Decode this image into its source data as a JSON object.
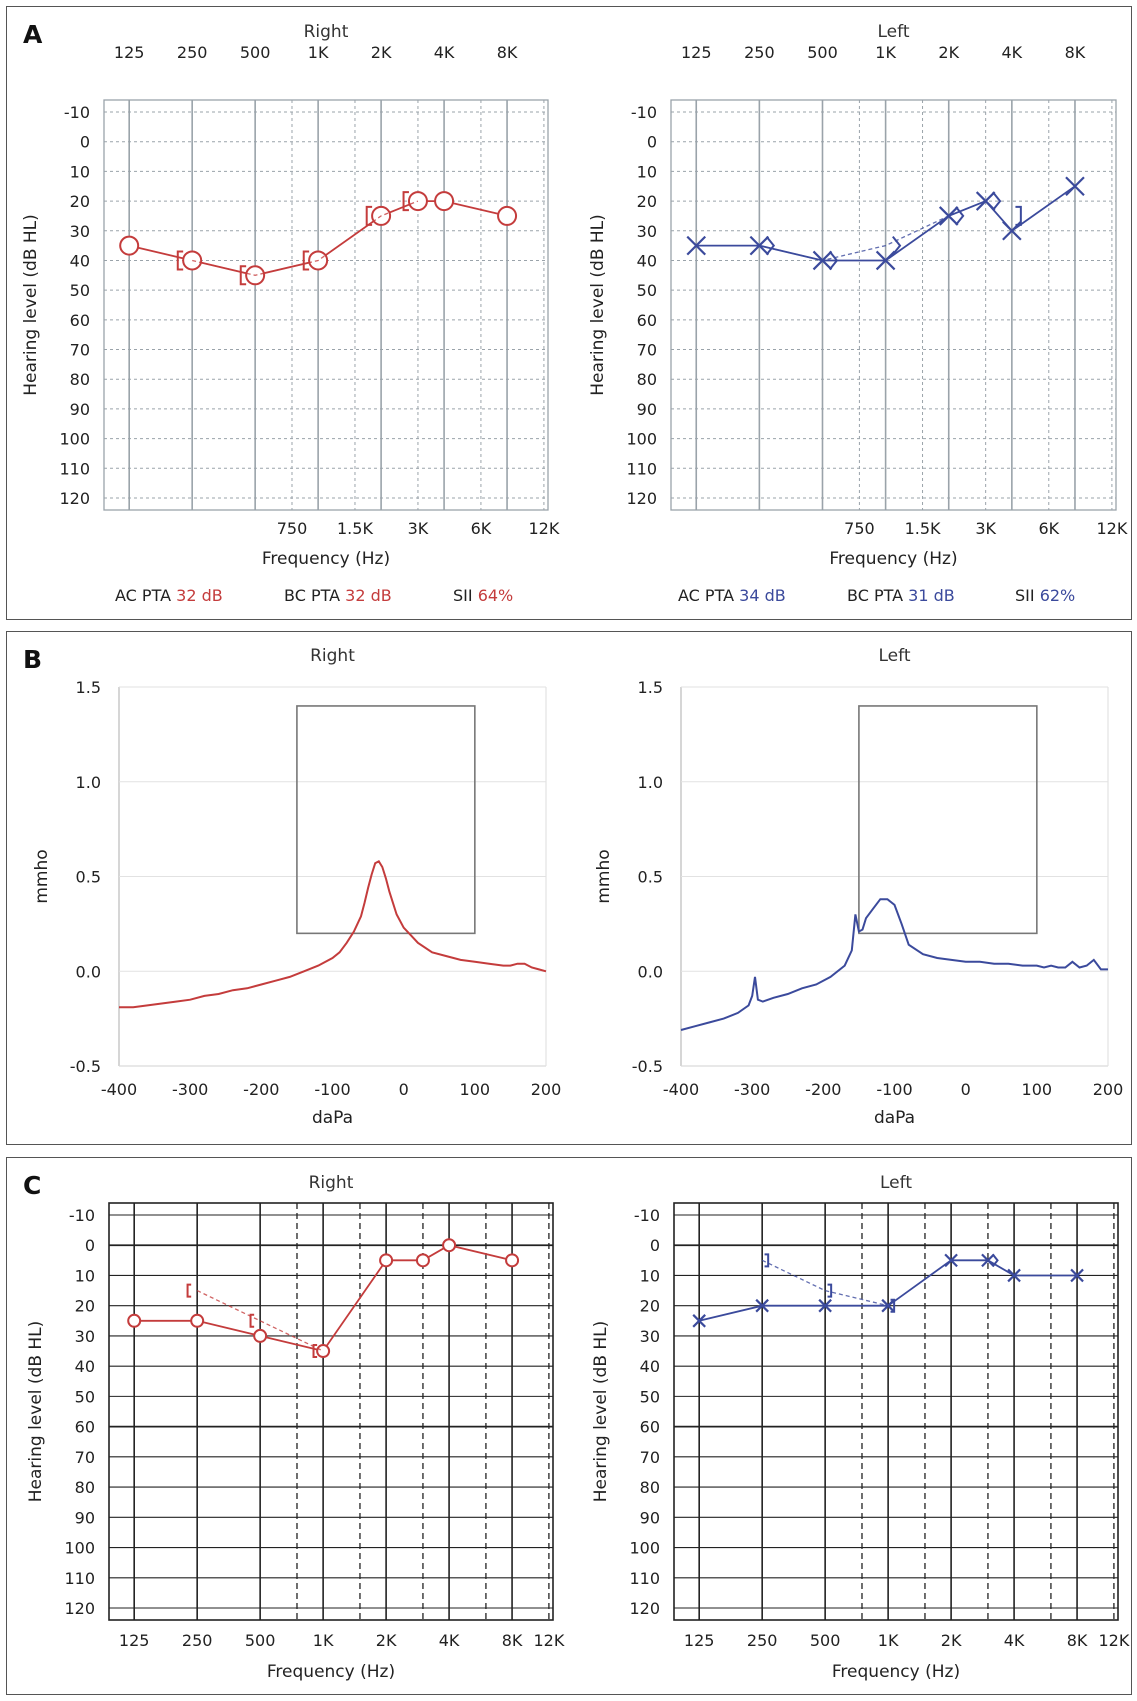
{
  "panels": [
    {
      "letter": "A"
    },
    {
      "letter": "B"
    },
    {
      "letter": "C"
    }
  ],
  "colors": {
    "right": "#c43c3c",
    "left": "#3b4a9c",
    "grid_a": "#9aa3aa",
    "grid_c": "#222222"
  },
  "chart_data": [
    {
      "type": "line",
      "panel": "A",
      "title": "Right",
      "ylabel": "Hearing level (dB HL)",
      "xlabel": "Frequency (Hz)",
      "y_ticks": [
        "-10",
        "0",
        "10",
        "20",
        "30",
        "40",
        "50",
        "60",
        "70",
        "80",
        "90",
        "100",
        "110",
        "120"
      ],
      "x_top_ticks": [
        "125",
        "250",
        "500",
        "1K",
        "2K",
        "4K",
        "8K"
      ],
      "x_bottom_ticks": [
        "750",
        "1.5K",
        "3K",
        "6K",
        "12K"
      ],
      "ylim": [
        -10,
        120
      ],
      "grid": true,
      "series": [
        {
          "marker": "O",
          "x": [
            "125",
            "250",
            "500",
            "1K",
            "2K",
            "3K",
            "4K",
            "8K"
          ],
          "y": [
            35,
            40,
            45,
            40,
            25,
            20,
            20,
            25
          ]
        },
        {
          "marker": "[",
          "x": [
            "250",
            "500",
            "1K",
            "2K",
            "3K"
          ],
          "y": [
            40,
            45,
            40,
            25,
            20
          ]
        }
      ],
      "footer": [
        {
          "label": "AC PTA",
          "value": "32 dB"
        },
        {
          "label": "BC PTA",
          "value": "32 dB"
        },
        {
          "label": "SII",
          "value": "64%"
        }
      ]
    },
    {
      "type": "line",
      "panel": "A",
      "title": "Left",
      "ylabel": "Hearing level (dB HL)",
      "xlabel": "Frequency (Hz)",
      "y_ticks": [
        "-10",
        "0",
        "10",
        "20",
        "30",
        "40",
        "50",
        "60",
        "70",
        "80",
        "90",
        "100",
        "110",
        "120"
      ],
      "x_top_ticks": [
        "125",
        "250",
        "500",
        "1K",
        "2K",
        "4K",
        "8K"
      ],
      "x_bottom_ticks": [
        "750",
        "1.5K",
        "3K",
        "6K",
        "12K"
      ],
      "ylim": [
        -10,
        120
      ],
      "grid": true,
      "series": [
        {
          "marker": "X",
          "x": [
            "125",
            "250",
            "500",
            "1K",
            "2K",
            "3K",
            "4K",
            "8K"
          ],
          "y": [
            35,
            35,
            40,
            40,
            25,
            20,
            30,
            15
          ]
        },
        {
          "marker": ">",
          "x": [
            "250",
            "500",
            "1K",
            "2K",
            "3K"
          ],
          "y": [
            35,
            40,
            35,
            25,
            20
          ]
        },
        {
          "marker": "]",
          "x": [
            "4K"
          ],
          "y": [
            25
          ]
        }
      ],
      "footer": [
        {
          "label": "AC PTA",
          "value": "34 dB"
        },
        {
          "label": "BC PTA",
          "value": "31 dB"
        },
        {
          "label": "SII",
          "value": "62%"
        }
      ]
    },
    {
      "type": "line",
      "panel": "B",
      "title": "Right",
      "ylabel": "mmho",
      "xlabel": "daPa",
      "xlim": [
        -400,
        200
      ],
      "ylim": [
        -0.5,
        1.5
      ],
      "x_ticks": [
        "-400",
        "-300",
        "-200",
        "-100",
        "0",
        "100",
        "200"
      ],
      "y_ticks": [
        "1.5",
        "1.0",
        "0.5",
        "0.0",
        "-0.5"
      ],
      "box": {
        "x": [
          -150,
          100
        ],
        "y": [
          0.2,
          1.4
        ]
      },
      "series": [
        {
          "x": [
            -400,
            -380,
            -360,
            -340,
            -320,
            -300,
            -280,
            -260,
            -240,
            -220,
            -200,
            -180,
            -160,
            -140,
            -120,
            -100,
            -90,
            -80,
            -70,
            -60,
            -55,
            -50,
            -45,
            -40,
            -35,
            -30,
            -25,
            -20,
            -10,
            0,
            10,
            20,
            40,
            60,
            80,
            100,
            120,
            140,
            150,
            160,
            170,
            180,
            190,
            200
          ],
          "y": [
            -0.19,
            -0.19,
            -0.18,
            -0.17,
            -0.16,
            -0.15,
            -0.13,
            -0.12,
            -0.1,
            -0.09,
            -0.07,
            -0.05,
            -0.03,
            0,
            0.03,
            0.07,
            0.1,
            0.15,
            0.21,
            0.29,
            0.36,
            0.44,
            0.51,
            0.57,
            0.58,
            0.55,
            0.49,
            0.42,
            0.3,
            0.23,
            0.19,
            0.15,
            0.1,
            0.08,
            0.06,
            0.05,
            0.04,
            0.03,
            0.03,
            0.04,
            0.04,
            0.02,
            0.01,
            0.0
          ]
        }
      ]
    },
    {
      "type": "line",
      "panel": "B",
      "title": "Left",
      "ylabel": "mmho",
      "xlabel": "daPa",
      "xlim": [
        -400,
        200
      ],
      "ylim": [
        -0.5,
        1.5
      ],
      "x_ticks": [
        "-400",
        "-300",
        "-200",
        "-100",
        "0",
        "100",
        "200"
      ],
      "y_ticks": [
        "1.5",
        "1.0",
        "0.5",
        "0.0",
        "-0.5"
      ],
      "box": {
        "x": [
          -150,
          100
        ],
        "y": [
          0.2,
          1.4
        ]
      },
      "series": [
        {
          "x": [
            -400,
            -380,
            -360,
            -340,
            -320,
            -305,
            -300,
            -296,
            -292,
            -285,
            -270,
            -250,
            -230,
            -210,
            -190,
            -170,
            -160,
            -155,
            -150,
            -145,
            -140,
            -130,
            -120,
            -110,
            -100,
            -90,
            -80,
            -60,
            -40,
            -20,
            0,
            20,
            40,
            60,
            80,
            100,
            110,
            120,
            130,
            140,
            150,
            160,
            170,
            180,
            190,
            200
          ],
          "y": [
            -0.31,
            -0.29,
            -0.27,
            -0.25,
            -0.22,
            -0.18,
            -0.13,
            -0.03,
            -0.15,
            -0.16,
            -0.14,
            -0.12,
            -0.09,
            -0.07,
            -0.03,
            0.03,
            0.11,
            0.3,
            0.21,
            0.22,
            0.28,
            0.33,
            0.38,
            0.38,
            0.35,
            0.25,
            0.14,
            0.09,
            0.07,
            0.06,
            0.05,
            0.05,
            0.04,
            0.04,
            0.03,
            0.03,
            0.02,
            0.03,
            0.02,
            0.02,
            0.05,
            0.02,
            0.03,
            0.06,
            0.01,
            0.01
          ]
        }
      ]
    },
    {
      "type": "line",
      "panel": "C",
      "title": "Right",
      "ylabel": "Hearing level (dB HL)",
      "xlabel": "Frequency (Hz)",
      "y_ticks": [
        "-10",
        "0",
        "10",
        "20",
        "30",
        "40",
        "50",
        "60",
        "70",
        "80",
        "90",
        "100",
        "110",
        "120"
      ],
      "x_ticks": [
        "125",
        "250",
        "500",
        "1K",
        "2K",
        "4K",
        "8K",
        "12K"
      ],
      "ylim": [
        -10,
        120
      ],
      "grid": true,
      "series": [
        {
          "marker": "O",
          "x": [
            "125",
            "250",
            "500",
            "1K",
            "2K",
            "3K",
            "4K",
            "8K"
          ],
          "y": [
            25,
            25,
            30,
            35,
            5,
            5,
            0,
            5
          ]
        },
        {
          "marker": "[",
          "x": [
            "250",
            "500",
            "1K"
          ],
          "y": [
            15,
            25,
            35
          ]
        }
      ]
    },
    {
      "type": "line",
      "panel": "C",
      "title": "Left",
      "ylabel": "Hearing level (dB HL)",
      "xlabel": "Frequency (Hz)",
      "y_ticks": [
        "-10",
        "0",
        "10",
        "20",
        "30",
        "40",
        "50",
        "60",
        "70",
        "80",
        "90",
        "100",
        "110",
        "120"
      ],
      "x_ticks": [
        "125",
        "250",
        "500",
        "1K",
        "2K",
        "4K",
        "8K",
        "12K"
      ],
      "ylim": [
        -10,
        120
      ],
      "grid": true,
      "series": [
        {
          "marker": "X",
          "x": [
            "125",
            "250",
            "500",
            "1K",
            "2K",
            "3K",
            "4K",
            "8K"
          ],
          "y": [
            25,
            20,
            20,
            20,
            5,
            5,
            10,
            10
          ]
        },
        {
          "marker": "]",
          "x": [
            "250",
            "500",
            "1K"
          ],
          "y": [
            5,
            15,
            20
          ]
        },
        {
          "marker": ">",
          "x": [
            "3K"
          ],
          "y": [
            5
          ]
        }
      ]
    }
  ]
}
